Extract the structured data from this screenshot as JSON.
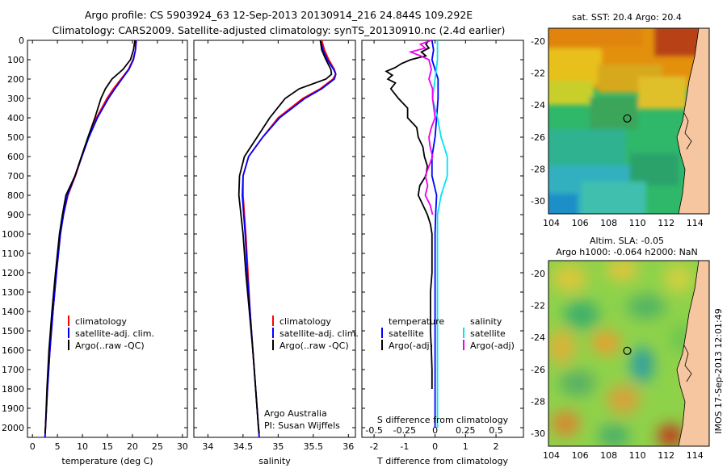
{
  "figure": {
    "title_line1": "Argo profile: CS 5903924_63 12-Sep-2013 20130914_216 24.844S 109.292E",
    "title_line2": "Climatology: CARS2009. Satellite-adjusted climatology: synTS_20130910.nc (2.4d earlier)",
    "footer": "IMOS 17-Sep-2013 12:01:49",
    "credit1": "Argo Australia",
    "credit2": "PI: Susan Wijffels"
  },
  "colors": {
    "climatology": "#ff0000",
    "satellite": "#0000ff",
    "argo": "#000000",
    "argo_salinity_diff": "#ee00ee",
    "satellite_salinity_diff": "#00e5ee"
  },
  "chart_data": [
    {
      "type": "line",
      "panel": "temperature",
      "xlabel": "temperature (deg C)",
      "ylabel": "",
      "xlim": [
        -1,
        31
      ],
      "ylim": [
        2050,
        0
      ],
      "xticks": [
        "0",
        "5",
        "10",
        "15",
        "20",
        "25",
        "30"
      ],
      "yticks": [
        "0",
        "100",
        "200",
        "300",
        "400",
        "500",
        "600",
        "700",
        "800",
        "900",
        "1000",
        "1100",
        "1200",
        "1300",
        "1400",
        "1500",
        "1600",
        "1700",
        "1800",
        "1900",
        "2000"
      ],
      "legend": [
        "climatology",
        "satellite-adj. clim.",
        "Argo(..raw -QC)"
      ],
      "series": [
        {
          "name": "climatology",
          "y": [
            0,
            50,
            100,
            150,
            200,
            250,
            300,
            400,
            500,
            600,
            700,
            800,
            900,
            1000,
            1200,
            1400,
            1600,
            1800,
            2000,
            2050
          ],
          "x": [
            20.8,
            20.6,
            20.1,
            19.2,
            17.7,
            16.2,
            14.9,
            12.8,
            11.2,
            9.9,
            8.6,
            7.1,
            6.2,
            5.6,
            4.8,
            4.1,
            3.5,
            3.0,
            2.6,
            2.5
          ]
        },
        {
          "name": "satellite-adj. clim.",
          "y": [
            0,
            50,
            100,
            150,
            200,
            250,
            300,
            400,
            500,
            600,
            700,
            800,
            900,
            1000,
            1200,
            1400,
            1600,
            1800,
            2000,
            2050
          ],
          "x": [
            20.7,
            20.6,
            20.2,
            19.3,
            17.9,
            16.5,
            15.2,
            13.0,
            11.3,
            9.9,
            8.5,
            7.0,
            6.2,
            5.6,
            4.8,
            4.1,
            3.5,
            3.0,
            2.6,
            2.5
          ]
        },
        {
          "name": "Argo(..raw -QC)",
          "y": [
            0,
            50,
            100,
            150,
            200,
            250,
            300,
            400,
            500,
            600,
            700,
            800,
            900,
            1000,
            1200,
            1400,
            1600,
            1800,
            2000,
            2030
          ],
          "x": [
            20.5,
            20.2,
            19.6,
            18.1,
            15.9,
            14.6,
            13.7,
            12.5,
            11.1,
            9.8,
            8.5,
            6.7,
            6.0,
            5.4,
            4.6,
            3.9,
            3.3,
            2.9,
            2.6,
            2.5
          ]
        }
      ]
    },
    {
      "type": "line",
      "panel": "salinity",
      "xlabel": "salinity",
      "ylabel": "",
      "xlim": [
        33.8,
        36.1
      ],
      "ylim": [
        2050,
        0
      ],
      "xticks": [
        "34",
        "34.5",
        "35",
        "35.5",
        "36"
      ],
      "legend": [
        "climatology",
        "satellite-adj. clim.",
        "Argo(..raw -QC)"
      ],
      "series": [
        {
          "name": "climatology",
          "y": [
            0,
            50,
            100,
            150,
            175,
            200,
            250,
            300,
            400,
            500,
            600,
            700,
            800,
            900,
            1000,
            1200,
            1400,
            1600,
            1800,
            2000,
            2050
          ],
          "x": [
            35.62,
            35.66,
            35.72,
            35.8,
            35.82,
            35.78,
            35.6,
            35.35,
            35.0,
            34.78,
            34.58,
            34.5,
            34.5,
            34.52,
            34.54,
            34.57,
            34.6,
            34.64,
            34.68,
            34.72,
            34.73
          ]
        },
        {
          "name": "satellite-adj. clim.",
          "y": [
            0,
            50,
            100,
            150,
            175,
            200,
            250,
            300,
            400,
            500,
            600,
            700,
            800,
            900,
            1000,
            1200,
            1400,
            1600,
            1800,
            2000,
            2050
          ],
          "x": [
            35.6,
            35.64,
            35.7,
            35.79,
            35.82,
            35.8,
            35.62,
            35.38,
            35.02,
            34.78,
            34.58,
            34.5,
            34.49,
            34.51,
            34.53,
            34.56,
            34.6,
            34.64,
            34.68,
            34.72,
            34.73
          ]
        },
        {
          "name": "Argo(..raw -QC)",
          "y": [
            0,
            50,
            100,
            150,
            175,
            200,
            250,
            300,
            400,
            500,
            600,
            700,
            800,
            900,
            1000,
            1200,
            1400,
            1600,
            1800,
            2000,
            2030
          ],
          "x": [
            35.6,
            35.62,
            35.68,
            35.75,
            35.76,
            35.68,
            35.3,
            35.1,
            34.88,
            34.7,
            34.52,
            34.45,
            34.44,
            34.47,
            34.5,
            34.54,
            34.59,
            34.64,
            34.68,
            34.72,
            34.73
          ]
        }
      ]
    },
    {
      "type": "line",
      "panel": "difference",
      "xlabel": "T difference from climatology",
      "xlabel_top": "S difference from climatology",
      "xlim": [
        -2.4,
        2.9
      ],
      "ylim": [
        2050,
        0
      ],
      "xticks": [
        "-2",
        "-1",
        "0",
        "1",
        "2"
      ],
      "xticks_top": [
        "-0.5",
        "-0.25",
        "0",
        "0.25",
        "0.5"
      ],
      "legend_temperature": {
        "heading": "temperature",
        "items": [
          "satellite",
          "Argo(-adj)"
        ]
      },
      "legend_salinity": {
        "heading": "salinity",
        "items": [
          "satellite",
          "Argo(-adj)"
        ]
      },
      "series": [
        {
          "name": "temperature satellite",
          "y": [
            0,
            50,
            100,
            150,
            200,
            300,
            400,
            500,
            600,
            700,
            800,
            900,
            1000,
            1200,
            1400,
            1600,
            1800,
            2000
          ],
          "x": [
            -0.1,
            -0.05,
            -0.1,
            0.0,
            0.1,
            0.1,
            0.05,
            0.0,
            -0.1,
            -0.1,
            0.05,
            0.02,
            0.0,
            0.0,
            0.0,
            0.0,
            0.0,
            0.0
          ]
        },
        {
          "name": "temperature Argo(-adj)",
          "y": [
            0,
            20,
            40,
            60,
            80,
            100,
            120,
            140,
            160,
            180,
            200,
            220,
            250,
            300,
            350,
            400,
            450,
            500,
            550,
            600,
            650,
            700,
            750,
            800,
            850,
            900,
            950,
            1000,
            1100,
            1200,
            1300,
            1400,
            1500,
            1600,
            1700,
            1800
          ],
          "x": [
            -0.2,
            -0.3,
            -0.2,
            -0.45,
            -0.3,
            -0.8,
            -1.1,
            -1.3,
            -1.6,
            -1.4,
            -1.55,
            -1.3,
            -1.45,
            -1.2,
            -0.9,
            -0.9,
            -0.6,
            -0.55,
            -0.4,
            -0.35,
            -0.25,
            -0.3,
            -0.5,
            -0.55,
            -0.4,
            -0.25,
            -0.15,
            -0.1,
            -0.1,
            -0.1,
            -0.15,
            -0.15,
            -0.15,
            -0.12,
            -0.1,
            -0.1
          ]
        },
        {
          "name": "salinity satellite",
          "y": [
            0,
            100,
            200,
            300,
            400,
            500,
            600,
            700,
            800,
            900,
            1000,
            1200,
            1400,
            1600,
            1800,
            2000
          ],
          "x": [
            0.02,
            0.02,
            0.0,
            -0.02,
            0.02,
            0.05,
            0.1,
            0.1,
            0.05,
            0.02,
            0.02,
            0.02,
            0.02,
            0.02,
            0.02,
            0.02
          ]
        },
        {
          "name": "salinity Argo(-adj)",
          "y": [
            0,
            20,
            40,
            60,
            80,
            100,
            150,
            200,
            250,
            300,
            350,
            400,
            450,
            500,
            550,
            600,
            650,
            700,
            750,
            800,
            850,
            900
          ],
          "x": [
            -0.03,
            -0.12,
            -0.08,
            -0.2,
            -0.12,
            -0.05,
            -0.03,
            -0.05,
            -0.02,
            -0.02,
            -0.01,
            0.0,
            -0.03,
            -0.05,
            -0.04,
            -0.02,
            -0.05,
            -0.08,
            -0.06,
            -0.08,
            -0.04,
            -0.02
          ]
        }
      ]
    },
    {
      "type": "heatmap",
      "panel": "sst_map",
      "title": "sat. SST: 20.4  Argo: 20.4",
      "xticks": [
        "104",
        "106",
        "108",
        "110",
        "112",
        "114"
      ],
      "yticks": [
        "-20",
        "-22",
        "-24",
        "-26",
        "-28",
        "-30"
      ],
      "xlim": [
        103.8,
        115
      ],
      "ylim": [
        -30.8,
        -19.2
      ],
      "marker": {
        "lon": 109.29,
        "lat": -24.84
      }
    },
    {
      "type": "heatmap",
      "panel": "sla_map",
      "title_line1": "Altim. SLA: -0.05",
      "title_line2": "Argo h1000: -0.064 h2000: NaN",
      "xticks": [
        "104",
        "106",
        "108",
        "110",
        "112",
        "114"
      ],
      "yticks": [
        "-20",
        "-22",
        "-24",
        "-26",
        "-28",
        "-30"
      ],
      "xlim": [
        103.8,
        115
      ],
      "ylim": [
        -30.8,
        -19.2
      ],
      "marker": {
        "lon": 109.29,
        "lat": -24.84
      }
    }
  ]
}
